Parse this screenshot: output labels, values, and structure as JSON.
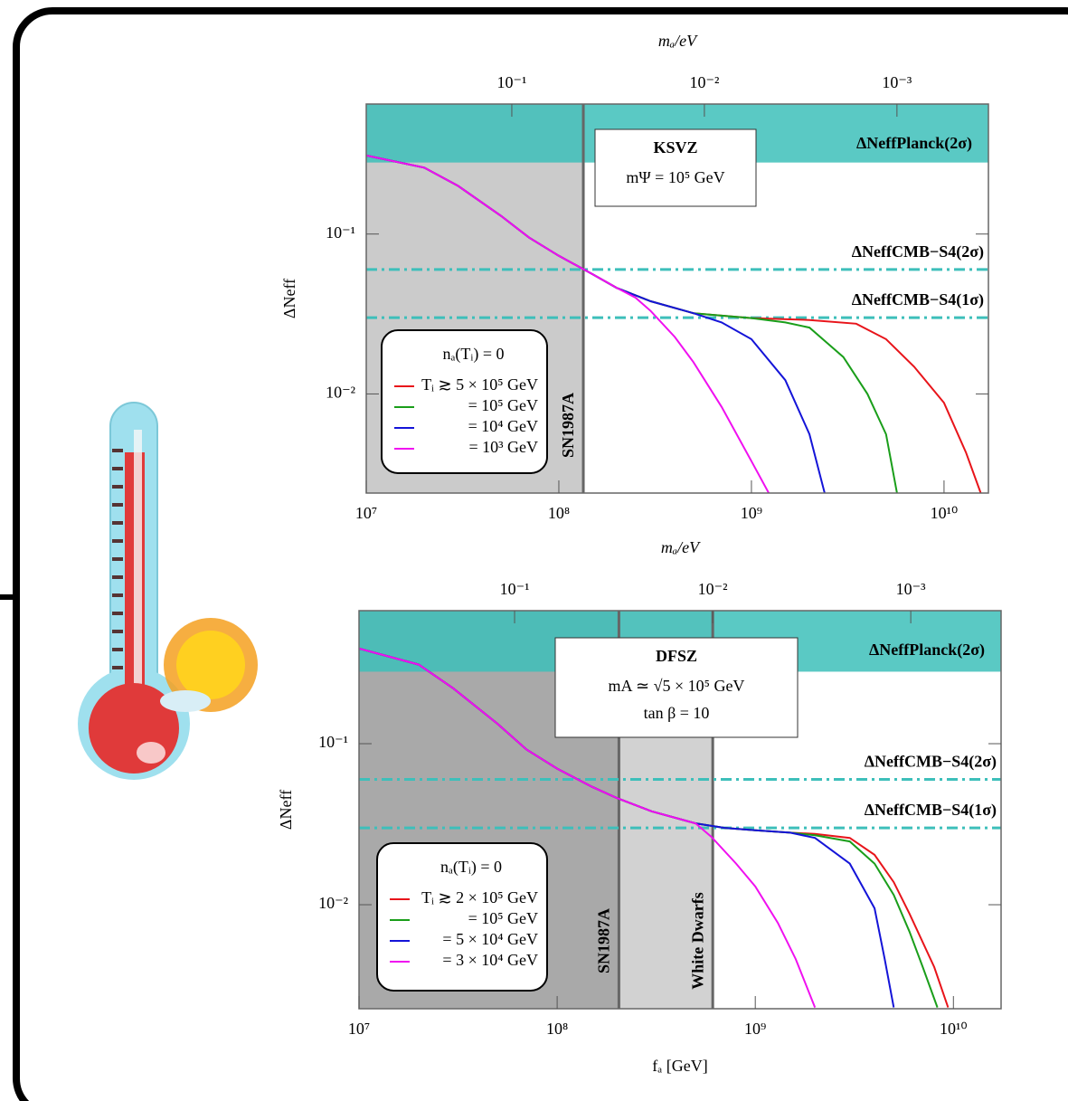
{
  "chart_data": [
    {
      "type": "line",
      "title": "KSVZ",
      "notes": [
        "mΨ = 10⁵ GeV"
      ],
      "ylabel": "ΔNeff",
      "x2label": "mₐ/eV",
      "xscale": "log",
      "yscale": "log",
      "xlim": [
        10000000,
        17000000000
      ],
      "ylim": [
        0.0024,
        0.65
      ],
      "xticks": [
        {
          "value": 10000000,
          "label": "10⁷"
        },
        {
          "value": 100000000,
          "label": "10⁸"
        },
        {
          "value": 1000000000,
          "label": "10⁹"
        },
        {
          "value": 10000000000,
          "label": "10¹⁰"
        }
      ],
      "yticks": [
        {
          "value": 0.1,
          "label": "10⁻¹"
        },
        {
          "value": 0.01,
          "label": "10⁻²"
        }
      ],
      "x2lim": [
        0.57,
        0.000335
      ],
      "x2ticks": [
        {
          "value": 0.1,
          "label": "10⁻¹"
        },
        {
          "value": 0.01,
          "label": "10⁻²"
        },
        {
          "value": 0.001,
          "label": "10⁻³"
        }
      ],
      "band": {
        "from": 0.28,
        "label": "ΔNeffPlanck(2σ)",
        "color": "#3dbfba"
      },
      "hlines": [
        {
          "value": 0.06,
          "label": "ΔNeffCMB−S4(2σ)"
        },
        {
          "value": 0.03,
          "label": "ΔNeffCMB−S4(1σ)"
        }
      ],
      "vlines": [
        {
          "value": 134000000,
          "label": "SN1987A",
          "shade": "#cbcbcb"
        }
      ],
      "legend_title": "nₐ(Tᵢ) = 0",
      "series": [
        {
          "name": "Tᵢ ≳ 5 × 10⁵ GeV",
          "color": "#e8141a",
          "x": [
            10000000,
            20000000,
            30000000,
            50000000,
            70000000,
            100000000,
            150000000,
            200000000,
            300000000,
            500000000,
            1000000000,
            2000000000,
            3500000000,
            5000000000,
            7000000000,
            10000000000,
            13000000000,
            15500000000
          ],
          "values": [
            0.31,
            0.26,
            0.2,
            0.13,
            0.095,
            0.073,
            0.056,
            0.046,
            0.038,
            0.032,
            0.0298,
            0.029,
            0.0275,
            0.022,
            0.0148,
            0.0088,
            0.0043,
            0.0024
          ]
        },
        {
          "name": "= 10⁵ GeV",
          "color": "#1a9e1a",
          "x": [
            10000000,
            20000000,
            30000000,
            50000000,
            70000000,
            100000000,
            150000000,
            200000000,
            300000000,
            500000000,
            1000000000,
            1500000000,
            2000000000,
            3000000000,
            4000000000,
            5000000000,
            5700000000
          ],
          "values": [
            0.31,
            0.26,
            0.2,
            0.13,
            0.095,
            0.073,
            0.056,
            0.046,
            0.038,
            0.032,
            0.0298,
            0.028,
            0.026,
            0.017,
            0.01,
            0.0056,
            0.0024
          ]
        },
        {
          "name": "= 10⁴ GeV",
          "color": "#1414d8",
          "x": [
            10000000,
            20000000,
            30000000,
            50000000,
            70000000,
            100000000,
            150000000,
            200000000,
            300000000,
            500000000,
            700000000,
            1000000000,
            1500000000,
            2000000000,
            2400000000
          ],
          "values": [
            0.31,
            0.26,
            0.2,
            0.13,
            0.095,
            0.073,
            0.056,
            0.046,
            0.038,
            0.032,
            0.028,
            0.022,
            0.0122,
            0.0056,
            0.0024
          ]
        },
        {
          "name": "= 10³ GeV",
          "color": "#f010f0",
          "x": [
            10000000,
            20000000,
            30000000,
            50000000,
            70000000,
            100000000,
            150000000,
            200000000,
            250000000,
            300000000,
            400000000,
            500000000,
            700000000,
            1000000000,
            1230000000
          ],
          "values": [
            0.31,
            0.26,
            0.2,
            0.13,
            0.095,
            0.073,
            0.056,
            0.046,
            0.04,
            0.033,
            0.0227,
            0.0158,
            0.0083,
            0.0038,
            0.0024
          ]
        }
      ]
    },
    {
      "type": "line",
      "title": "DFSZ",
      "notes": [
        "mA ≃ √5 × 10⁵ GeV",
        "tan β = 10"
      ],
      "ylabel": "ΔNeff",
      "xlabel": "fₐ [GeV]",
      "x2label": "mₐ/eV",
      "xscale": "log",
      "yscale": "log",
      "xlim": [
        10000000,
        17400000000
      ],
      "ylim": [
        0.00226,
        0.67
      ],
      "xticks": [
        {
          "value": 10000000,
          "label": "10⁷"
        },
        {
          "value": 100000000,
          "label": "10⁸"
        },
        {
          "value": 1000000000,
          "label": "10⁹"
        },
        {
          "value": 10000000000,
          "label": "10¹⁰"
        }
      ],
      "yticks": [
        {
          "value": 0.1,
          "label": "10⁻¹"
        },
        {
          "value": 0.01,
          "label": "10⁻²"
        }
      ],
      "x2lim": [
        0.61,
        0.00035
      ],
      "x2ticks": [
        {
          "value": 0.1,
          "label": "10⁻¹"
        },
        {
          "value": 0.01,
          "label": "10⁻²"
        },
        {
          "value": 0.001,
          "label": "10⁻³"
        }
      ],
      "band": {
        "from": 0.28,
        "label": "ΔNeffPlanck(2σ)",
        "color": "#3dbfba"
      },
      "hlines": [
        {
          "value": 0.06,
          "label": "ΔNeffCMB−S4(2σ)"
        },
        {
          "value": 0.03,
          "label": "ΔNeffCMB−S4(1σ)"
        }
      ],
      "vlines": [
        {
          "value": 205000000,
          "label": "SN1987A",
          "shade": "#a9a9a9"
        },
        {
          "value": 610000000,
          "label": "White Dwarfs",
          "shade": "#d2d2d2"
        }
      ],
      "legend_title": "nₐ(Tᵢ) = 0",
      "series": [
        {
          "name": "Tᵢ ≳ 2 × 10⁵ GeV",
          "color": "#e8141a",
          "x": [
            10000000,
            20000000,
            30000000,
            50000000,
            70000000,
            100000000,
            150000000,
            200000000,
            300000000,
            500000000,
            700000000,
            1000000000,
            1500000000,
            2000000000,
            3000000000,
            4000000000,
            5000000000,
            6000000000,
            8000000000,
            9400000000
          ],
          "values": [
            0.39,
            0.31,
            0.22,
            0.133,
            0.092,
            0.07,
            0.054,
            0.046,
            0.038,
            0.032,
            0.03,
            0.029,
            0.028,
            0.0275,
            0.026,
            0.0204,
            0.0138,
            0.0088,
            0.0041,
            0.0023
          ]
        },
        {
          "name": "= 10⁵ GeV",
          "color": "#1a9e1a",
          "x": [
            10000000,
            20000000,
            30000000,
            50000000,
            70000000,
            100000000,
            150000000,
            200000000,
            300000000,
            500000000,
            700000000,
            1000000000,
            1500000000,
            2000000000,
            3000000000,
            4000000000,
            5000000000,
            6000000000,
            7000000000,
            8300000000
          ],
          "values": [
            0.39,
            0.31,
            0.22,
            0.133,
            0.092,
            0.07,
            0.054,
            0.046,
            0.038,
            0.032,
            0.03,
            0.029,
            0.028,
            0.027,
            0.0247,
            0.018,
            0.0115,
            0.0068,
            0.0041,
            0.0023
          ]
        },
        {
          "name": "= 5 × 10⁴ GeV",
          "color": "#1414d8",
          "x": [
            10000000,
            20000000,
            30000000,
            50000000,
            70000000,
            100000000,
            150000000,
            200000000,
            300000000,
            500000000,
            700000000,
            1000000000,
            1500000000,
            2000000000,
            3000000000,
            4000000000,
            4500000000,
            5000000000
          ],
          "values": [
            0.39,
            0.31,
            0.22,
            0.133,
            0.092,
            0.07,
            0.054,
            0.046,
            0.038,
            0.032,
            0.03,
            0.029,
            0.028,
            0.026,
            0.018,
            0.0095,
            0.0046,
            0.0023
          ]
        },
        {
          "name": "= 3 × 10⁴ GeV",
          "color": "#f010f0",
          "x": [
            10000000,
            20000000,
            30000000,
            50000000,
            70000000,
            100000000,
            150000000,
            200000000,
            300000000,
            500000000,
            600000000,
            800000000,
            1000000000,
            1300000000,
            1600000000,
            2000000000
          ],
          "values": [
            0.39,
            0.31,
            0.22,
            0.133,
            0.092,
            0.07,
            0.054,
            0.046,
            0.038,
            0.032,
            0.0264,
            0.018,
            0.013,
            0.0077,
            0.0046,
            0.0023
          ]
        }
      ]
    }
  ]
}
